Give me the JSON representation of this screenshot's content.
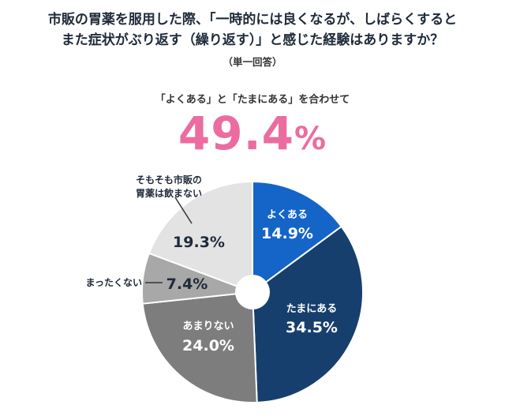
{
  "header": {
    "title_line1": "市販の胃薬を服用した際、「一時的には良くなるが、しばらくすると",
    "title_line2": "また症状がぶり返す（繰り返す）」と感じた経験はありますか？",
    "note": "（単一回答）"
  },
  "combined": {
    "label": "「よくある」と「たまにある」を合わせて",
    "value": "49.4",
    "unit": "%"
  },
  "colors": {
    "accent": "#ec6c9f",
    "slice_often": "#1565c8",
    "slice_sometimes": "#173f6e",
    "slice_rarely": "#7d7d7d",
    "slice_never": "#a8a8a8",
    "slice_noduse": "#e3e3e3"
  },
  "chart_data": {
    "type": "pie",
    "donut": true,
    "slices": [
      {
        "label": "よくある",
        "value": 14.9,
        "display": "14.9%",
        "color": "#1565c8"
      },
      {
        "label": "たまにある",
        "value": 34.5,
        "display": "34.5%",
        "color": "#173f6e"
      },
      {
        "label": "あまりない",
        "value": 24.0,
        "display": "24.0%",
        "color": "#7d7d7d"
      },
      {
        "label": "まったくない",
        "value": 7.4,
        "display": "7.4%",
        "color": "#a8a8a8"
      },
      {
        "label": "そもそも市販の胃薬は飲まない",
        "label_line1": "そもそも市販の",
        "label_line2": "胃薬は飲まない",
        "value": 19.3,
        "display": "19.3%",
        "color": "#e3e3e3"
      }
    ]
  }
}
